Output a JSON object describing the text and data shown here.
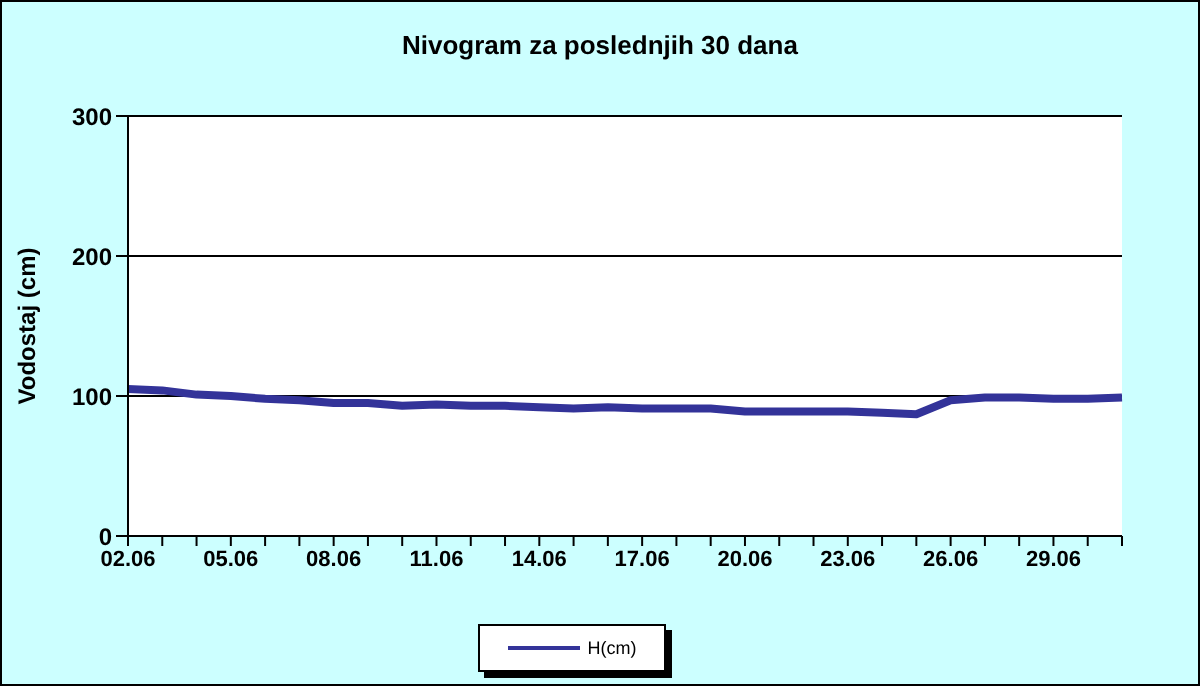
{
  "chart_data": {
    "type": "line",
    "title": "Nivogram za poslednjih 30 dana",
    "ylabel": "Vodostaj (cm)",
    "categories": [
      "02.06",
      null,
      null,
      "05.06",
      null,
      null,
      "08.06",
      null,
      null,
      "11.06",
      null,
      null,
      "14.06",
      null,
      null,
      "17.06",
      null,
      null,
      "20.06",
      null,
      null,
      "23.06",
      null,
      null,
      "26.06",
      null,
      null,
      "29.06",
      null,
      null
    ],
    "series": [
      {
        "name": "H(cm)",
        "color": "#333399",
        "values": [
          105,
          104,
          101,
          100,
          98,
          97,
          95,
          95,
          93,
          94,
          93,
          93,
          92,
          91,
          92,
          91,
          91,
          91,
          89,
          89,
          89,
          89,
          88,
          87,
          97,
          99,
          99,
          98,
          98,
          99
        ]
      }
    ],
    "ylim": [
      0,
      300
    ],
    "yticks": [
      0,
      100,
      200,
      300
    ],
    "grid": "y",
    "legend": "bottom",
    "marker": "none",
    "line_style": "solid"
  }
}
